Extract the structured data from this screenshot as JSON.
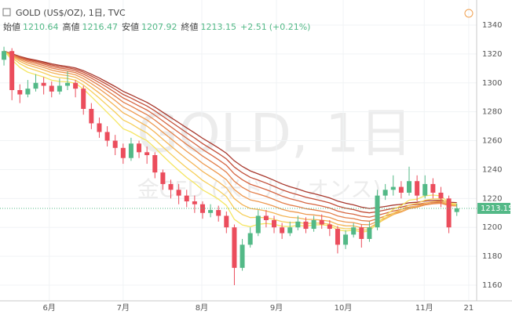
{
  "chart_data": {
    "type": "candlestick",
    "title": "GOLD (US$/OZ), 1日, TVC",
    "watermark": "GOLD, 1日",
    "watermark_sub": "金CFD (米ドル / オンス)",
    "ohlc": [
      {
        "label": "始値",
        "value": 1210.64
      },
      {
        "label": "高値",
        "value": 1216.47
      },
      {
        "label": "安値",
        "value": 1207.92
      },
      {
        "label": "終値",
        "value": 1213.15
      }
    ],
    "change": "+2.51",
    "change_pct": "(+0.21%)",
    "up_color": "#53b987",
    "down_color": "#eb4d5c",
    "ylim": [
      1150,
      1350
    ],
    "yticks": [
      1160,
      1180,
      1200,
      1220,
      1240,
      1260,
      1280,
      1300,
      1320,
      1340
    ],
    "xlim": [
      -0.5,
      59.5
    ],
    "xticks": [
      {
        "value": 5.7,
        "label": "6月"
      },
      {
        "value": 15,
        "label": "7月"
      },
      {
        "value": 24.9,
        "label": "8月"
      },
      {
        "value": 34.3,
        "label": "9月"
      },
      {
        "value": 42.7,
        "label": "10月"
      },
      {
        "value": 52.9,
        "label": "11月"
      },
      {
        "value": 58.5,
        "label": "21"
      }
    ],
    "ribbon": {
      "periods": [
        8,
        11,
        14,
        17,
        20,
        23,
        26,
        29
      ],
      "colors": [
        "#f5e663",
        "#f6cf5a",
        "#f4b454",
        "#ee9950",
        "#e37e49",
        "#d66642",
        "#c24e38",
        "#a8382d"
      ]
    },
    "candles": [
      [
        1316,
        1325,
        1312,
        1322
      ],
      [
        1322,
        1324,
        1288,
        1295
      ],
      [
        1295,
        1299,
        1286,
        1292
      ],
      [
        1292,
        1302,
        1290,
        1296
      ],
      [
        1296,
        1306,
        1294,
        1300
      ],
      [
        1300,
        1304,
        1292,
        1298
      ],
      [
        1298,
        1301,
        1290,
        1294
      ],
      [
        1294,
        1303,
        1292,
        1298
      ],
      [
        1298,
        1308,
        1295,
        1300
      ],
      [
        1300,
        1302,
        1290,
        1296
      ],
      [
        1296,
        1298,
        1278,
        1282
      ],
      [
        1282,
        1286,
        1268,
        1272
      ],
      [
        1272,
        1276,
        1262,
        1266
      ],
      [
        1266,
        1270,
        1256,
        1260
      ],
      [
        1260,
        1264,
        1250,
        1255
      ],
      [
        1255,
        1258,
        1244,
        1248
      ],
      [
        1248,
        1262,
        1246,
        1258
      ],
      [
        1258,
        1260,
        1248,
        1252
      ],
      [
        1252,
        1256,
        1244,
        1250
      ],
      [
        1250,
        1252,
        1234,
        1238
      ],
      [
        1238,
        1240,
        1226,
        1230
      ],
      [
        1230,
        1233,
        1220,
        1226
      ],
      [
        1226,
        1230,
        1216,
        1222
      ],
      [
        1222,
        1226,
        1214,
        1218
      ],
      [
        1218,
        1222,
        1210,
        1216
      ],
      [
        1216,
        1218,
        1206,
        1210
      ],
      [
        1210,
        1216,
        1207,
        1212
      ],
      [
        1212,
        1215,
        1204,
        1208
      ],
      [
        1208,
        1211,
        1196,
        1200
      ],
      [
        1200,
        1202,
        1160,
        1172
      ],
      [
        1172,
        1192,
        1170,
        1188
      ],
      [
        1188,
        1200,
        1186,
        1196
      ],
      [
        1196,
        1212,
        1194,
        1208
      ],
      [
        1208,
        1212,
        1200,
        1205
      ],
      [
        1205,
        1208,
        1196,
        1200
      ],
      [
        1200,
        1203,
        1192,
        1196
      ],
      [
        1196,
        1204,
        1194,
        1200
      ],
      [
        1200,
        1208,
        1198,
        1204
      ],
      [
        1204,
        1207,
        1196,
        1199
      ],
      [
        1199,
        1208,
        1197,
        1205
      ],
      [
        1205,
        1209,
        1199,
        1202
      ],
      [
        1202,
        1205,
        1194,
        1199
      ],
      [
        1199,
        1201,
        1182,
        1188
      ],
      [
        1188,
        1198,
        1185,
        1195
      ],
      [
        1195,
        1203,
        1193,
        1200
      ],
      [
        1200,
        1202,
        1186,
        1192
      ],
      [
        1192,
        1204,
        1190,
        1200
      ],
      [
        1200,
        1226,
        1198,
        1222
      ],
      [
        1222,
        1230,
        1219,
        1226
      ],
      [
        1226,
        1236,
        1222,
        1228
      ],
      [
        1228,
        1232,
        1220,
        1224
      ],
      [
        1224,
        1242,
        1222,
        1232
      ],
      [
        1232,
        1236,
        1218,
        1222
      ],
      [
        1222,
        1236,
        1220,
        1230
      ],
      [
        1230,
        1234,
        1220,
        1224
      ],
      [
        1224,
        1228,
        1214,
        1220
      ],
      [
        1220,
        1222,
        1196,
        1200
      ],
      [
        1210.64,
        1216.47,
        1207.92,
        1213.15
      ]
    ]
  }
}
